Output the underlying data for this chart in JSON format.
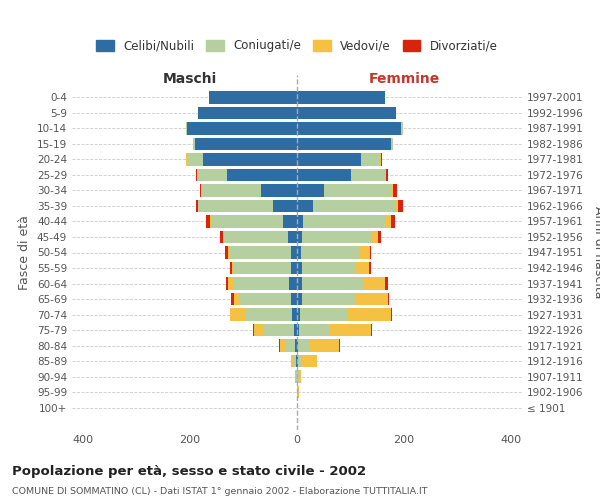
{
  "age_groups": [
    "100+",
    "95-99",
    "90-94",
    "85-89",
    "80-84",
    "75-79",
    "70-74",
    "65-69",
    "60-64",
    "55-59",
    "50-54",
    "45-49",
    "40-44",
    "35-39",
    "30-34",
    "25-29",
    "20-24",
    "15-19",
    "10-14",
    "5-9",
    "0-4"
  ],
  "birth_years": [
    "≤ 1901",
    "1902-1906",
    "1907-1911",
    "1912-1916",
    "1917-1921",
    "1922-1926",
    "1927-1931",
    "1932-1936",
    "1937-1941",
    "1942-1946",
    "1947-1951",
    "1952-1956",
    "1957-1961",
    "1962-1966",
    "1967-1971",
    "1972-1976",
    "1977-1981",
    "1982-1986",
    "1987-1991",
    "1992-1996",
    "1997-2001"
  ],
  "maschi": {
    "celibi": [
      0,
      0,
      0,
      1,
      3,
      6,
      10,
      12,
      15,
      12,
      12,
      16,
      26,
      44,
      68,
      130,
      175,
      190,
      205,
      185,
      165
    ],
    "coniugati": [
      0,
      0,
      2,
      5,
      18,
      55,
      85,
      95,
      105,
      105,
      115,
      120,
      135,
      140,
      110,
      55,
      30,
      5,
      2,
      0,
      0
    ],
    "vedovi": [
      0,
      0,
      1,
      6,
      10,
      20,
      30,
      10,
      8,
      5,
      2,
      2,
      1,
      1,
      1,
      2,
      2,
      0,
      0,
      0,
      0
    ],
    "divorziati": [
      0,
      0,
      0,
      0,
      2,
      1,
      1,
      7,
      4,
      3,
      6,
      6,
      7,
      4,
      2,
      2,
      1,
      0,
      0,
      0,
      0
    ]
  },
  "femmine": {
    "nubili": [
      0,
      0,
      0,
      2,
      2,
      4,
      6,
      10,
      10,
      10,
      8,
      10,
      12,
      30,
      50,
      100,
      120,
      175,
      195,
      185,
      165
    ],
    "coniugate": [
      0,
      2,
      3,
      8,
      22,
      55,
      90,
      100,
      115,
      100,
      110,
      130,
      155,
      155,
      125,
      65,
      35,
      5,
      2,
      0,
      0
    ],
    "vedove": [
      0,
      2,
      5,
      28,
      55,
      80,
      80,
      60,
      40,
      25,
      18,
      12,
      8,
      4,
      4,
      2,
      2,
      0,
      0,
      0,
      0
    ],
    "divorziate": [
      0,
      0,
      0,
      0,
      1,
      1,
      1,
      1,
      4,
      3,
      2,
      4,
      8,
      8,
      8,
      2,
      1,
      0,
      0,
      0,
      0
    ]
  },
  "colors": {
    "celibi": "#2e6da4",
    "coniugati": "#b5cfa0",
    "vedovi": "#f5c142",
    "divorziati": "#d9230f"
  },
  "xlim": 420,
  "title": "Popolazione per età, sesso e stato civile - 2002",
  "subtitle": "COMUNE DI SOMMATINO (CL) - Dati ISTAT 1° gennaio 2002 - Elaborazione TUTTITALIA.IT",
  "xlabel_left": "Maschi",
  "xlabel_right": "Femmine",
  "ylabel_left": "Fasce di età",
  "ylabel_right": "Anni di nascita"
}
